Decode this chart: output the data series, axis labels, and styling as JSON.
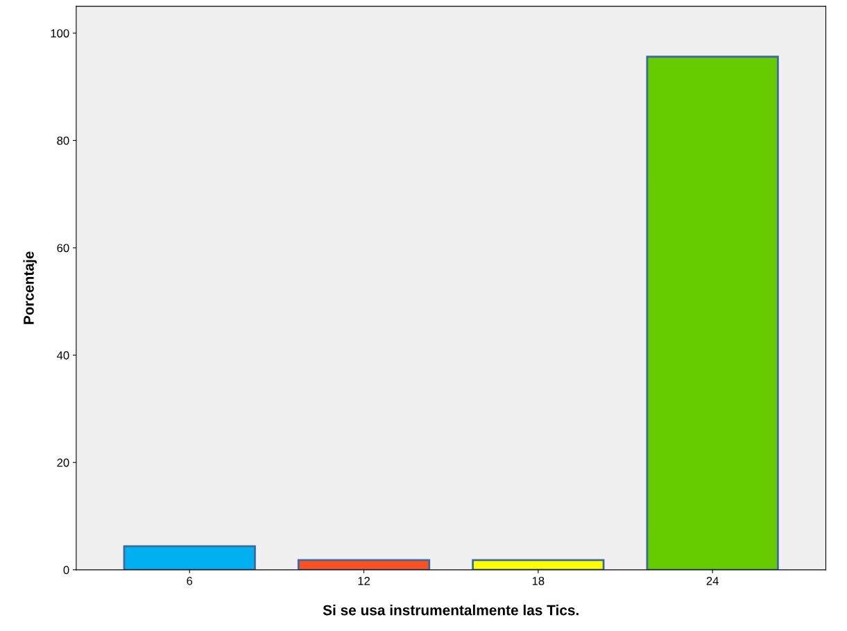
{
  "chart_data": {
    "type": "bar",
    "xlabel": "Si se usa instrumentalmente las Tics.",
    "ylabel": "Porcentaje",
    "categories": [
      "6",
      "12",
      "18",
      "24"
    ],
    "values": [
      4.4,
      1.8,
      1.8,
      95.6
    ],
    "colors": [
      "#00b0f0",
      "#ff5020",
      "#ffff00",
      "#66cc00"
    ],
    "ylim": [
      0,
      105
    ],
    "yticks": [
      0,
      20,
      40,
      60,
      80,
      100
    ],
    "grid": false,
    "legend": false
  }
}
